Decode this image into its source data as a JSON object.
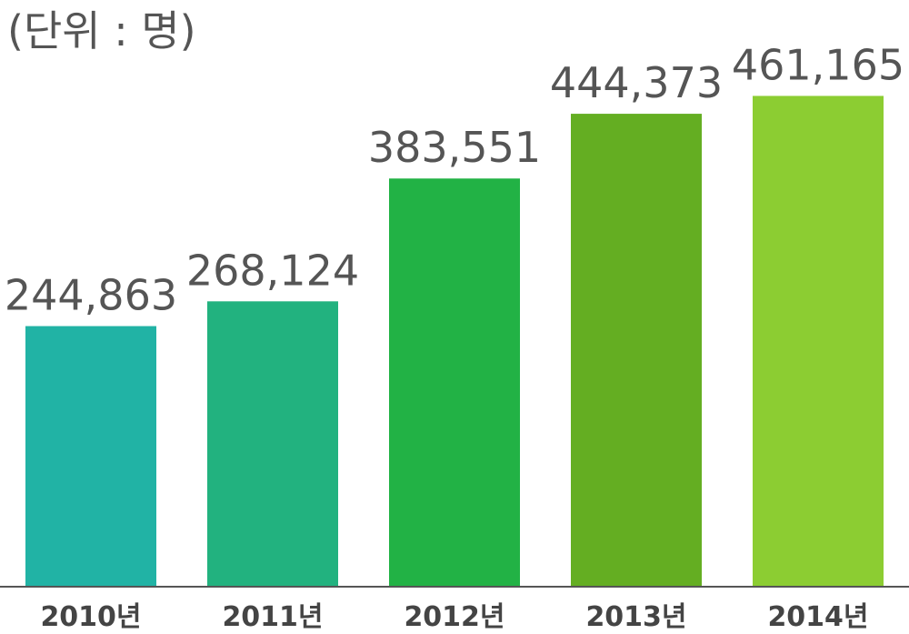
{
  "chart_data": {
    "type": "bar",
    "unit_label": "(단위 : 명)",
    "title": "",
    "xlabel": "",
    "ylabel": "",
    "categories": [
      "2010년",
      "2011년",
      "2012년",
      "2013년",
      "2014년"
    ],
    "values": [
      244863,
      268124,
      383551,
      444373,
      461165
    ],
    "value_labels": [
      "244,863",
      "268,124",
      "383,551",
      "444,373",
      "461,165"
    ],
    "colors": [
      "#21b3a5",
      "#22b27f",
      "#22b245",
      "#64ae22",
      "#8ccd32"
    ],
    "axis_color": "#555555",
    "ylim": [
      0,
      500000
    ],
    "grid": false,
    "legend": "none"
  }
}
